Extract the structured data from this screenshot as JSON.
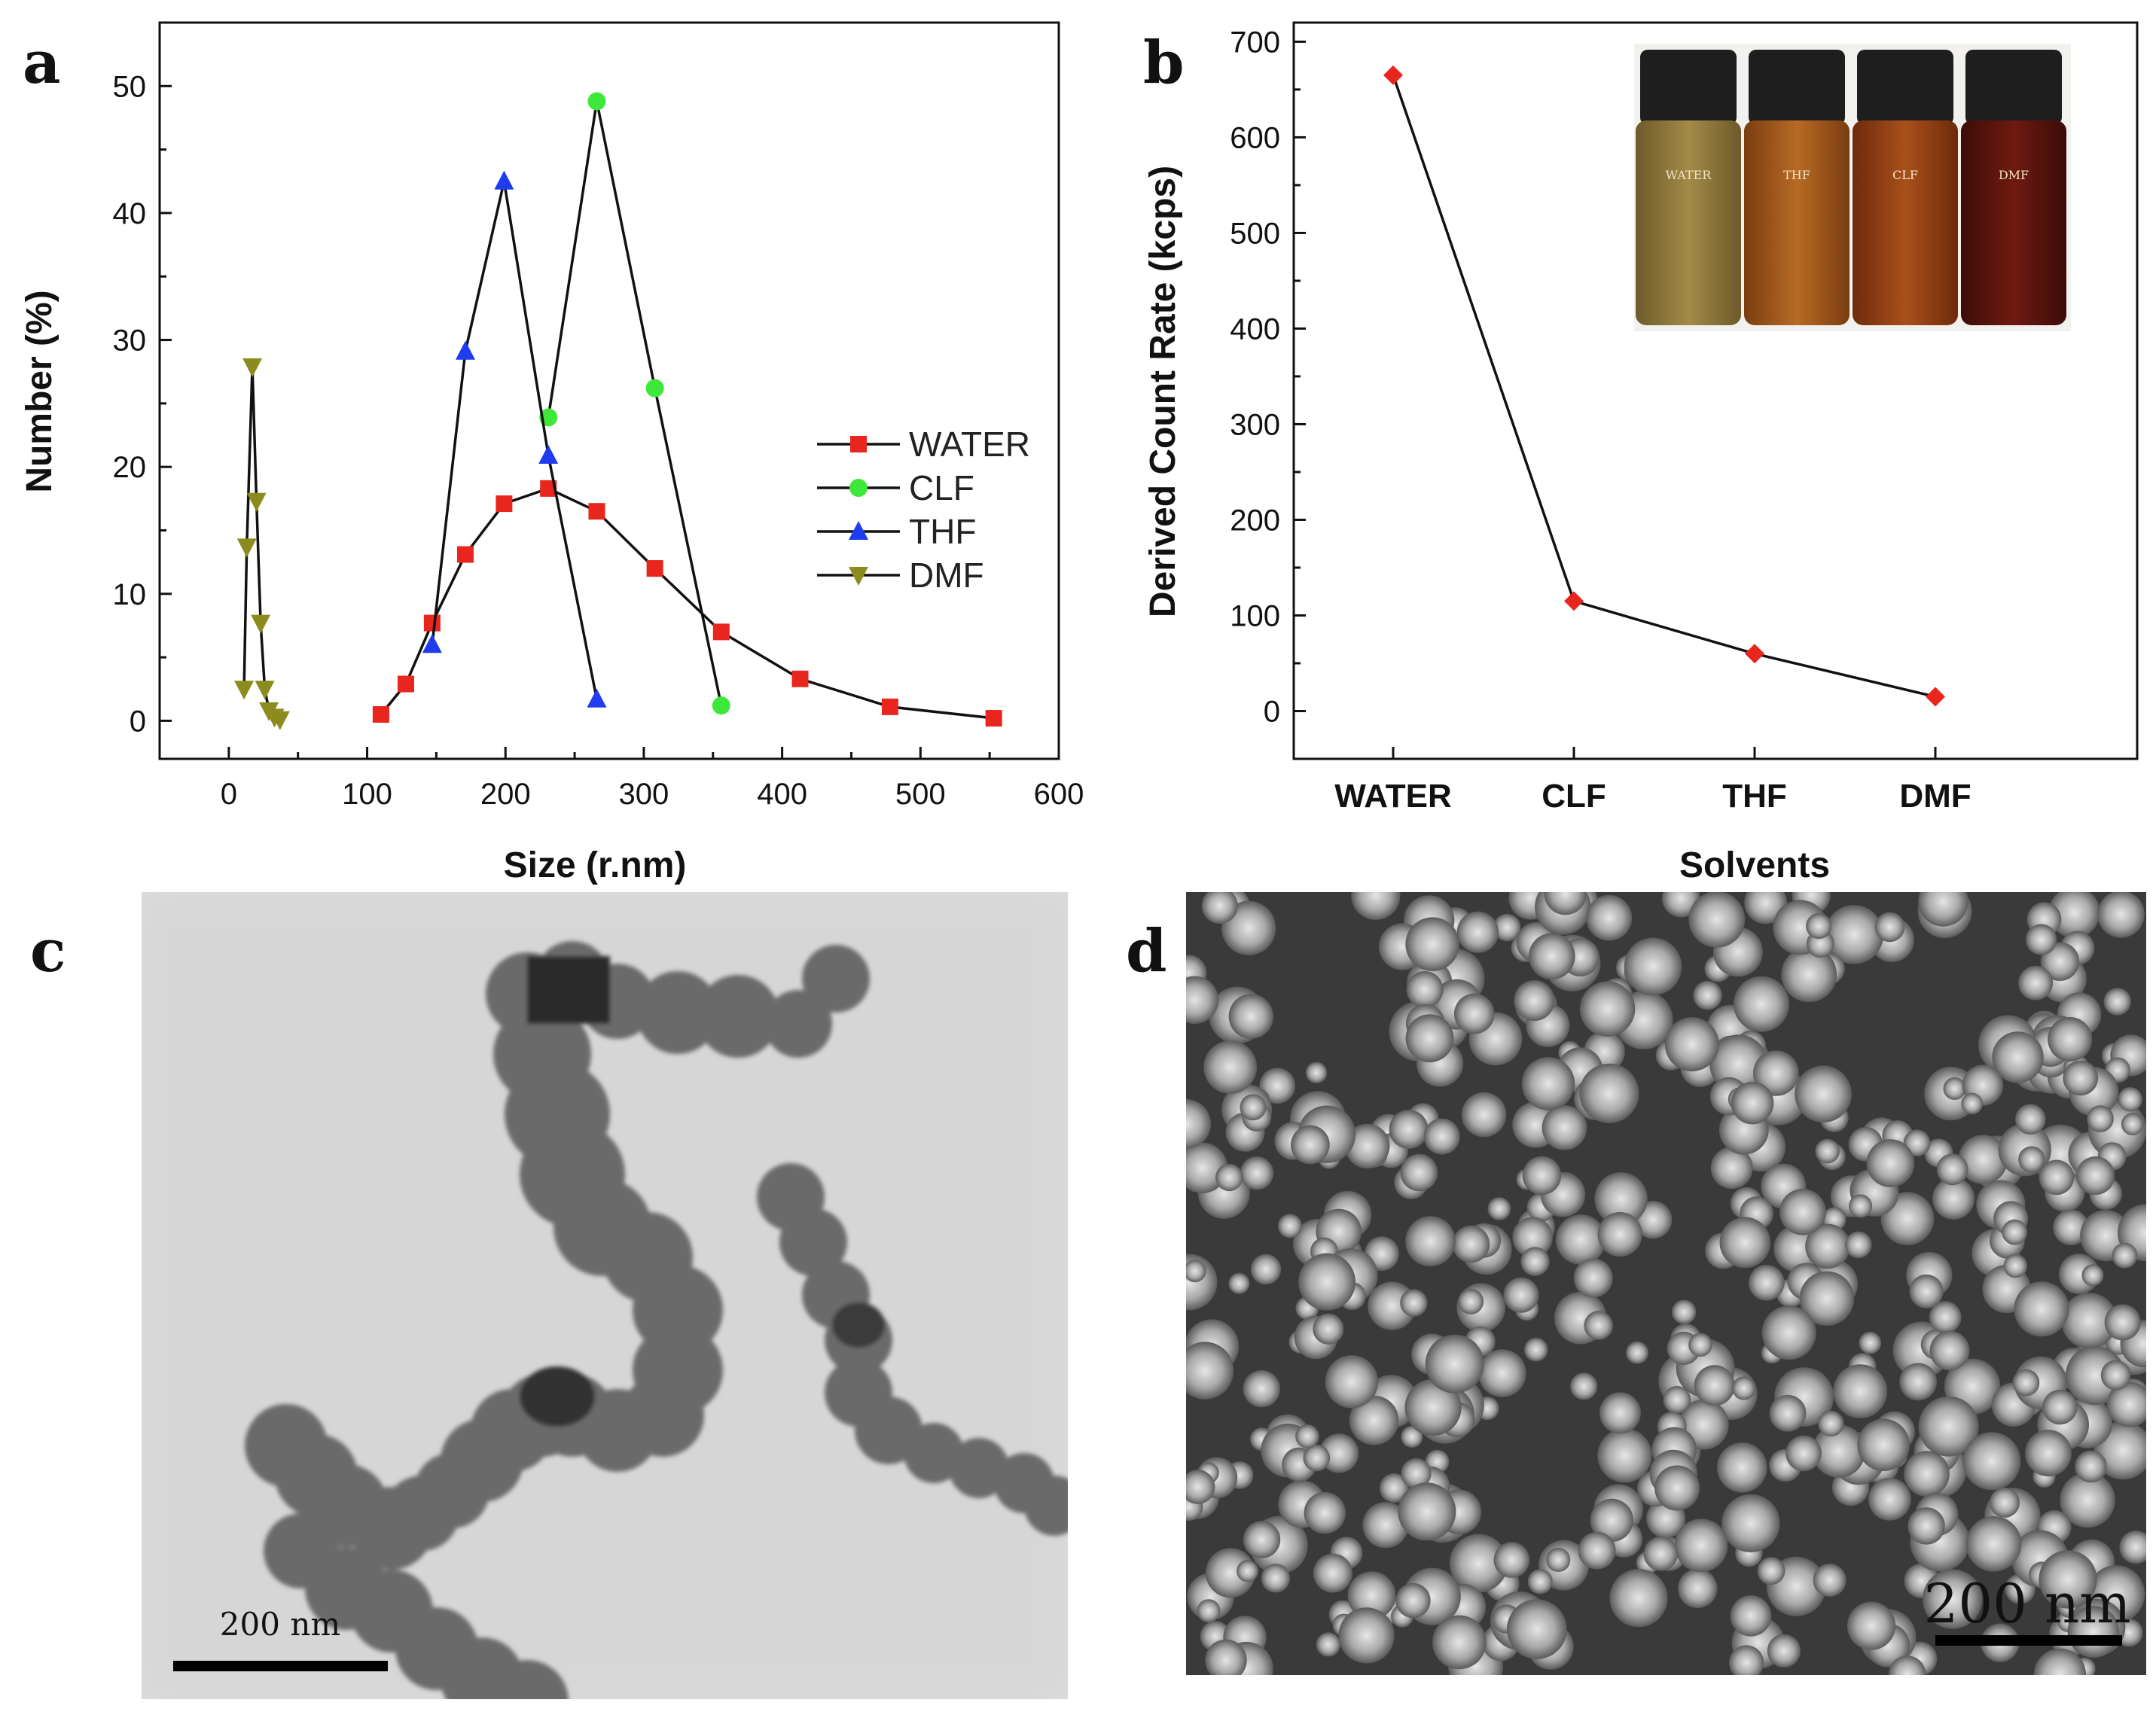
{
  "panels": {
    "a": {
      "letter": "a"
    },
    "b": {
      "letter": "b"
    },
    "c": {
      "letter": "c",
      "scale_bar": "200 nm"
    },
    "d": {
      "letter": "d",
      "scale_bar": "200 nm"
    }
  },
  "inset_vials": [
    "WATER",
    "THF",
    "CLF",
    "DMF"
  ],
  "colors": {
    "water": "#e8261e",
    "clf": "#3ee83a",
    "thf": "#1e3cf0",
    "dmf": "#8c8c1e",
    "line": "#111111",
    "b_marker": "#e8261e"
  },
  "chart_data": [
    {
      "type": "line",
      "panel": "a",
      "xlabel": "Size (r.nm)",
      "ylabel": "Number (%)",
      "xlim": [
        -50,
        600
      ],
      "ylim": [
        -3,
        55
      ],
      "x_ticks": [
        "0",
        "100",
        "200",
        "300",
        "400",
        "500",
        "600"
      ],
      "y_ticks": [
        "0",
        "10",
        "20",
        "30",
        "40",
        "50"
      ],
      "legend_position": "center-right",
      "series": [
        {
          "name": "WATER",
          "marker": "square",
          "x": [
            110,
            128,
            147,
            171,
            199,
            231,
            266,
            308,
            356,
            413,
            478,
            553
          ],
          "y": [
            0.5,
            2.9,
            7.7,
            13.1,
            17.1,
            18.3,
            16.5,
            12.0,
            7.0,
            3.3,
            1.1,
            0.2
          ]
        },
        {
          "name": "CLF",
          "marker": "circle",
          "x": [
            231,
            266,
            308,
            356
          ],
          "y": [
            23.9,
            48.8,
            26.2,
            1.2
          ]
        },
        {
          "name": "THF",
          "marker": "triangle-up",
          "x": [
            147,
            171,
            199,
            231,
            266
          ],
          "y": [
            6.0,
            29.1,
            42.5,
            20.9,
            1.7
          ]
        },
        {
          "name": "DMF",
          "marker": "triangle-down",
          "x": [
            11,
            13,
            17,
            20,
            23,
            26,
            29,
            33,
            37
          ],
          "y": [
            2.5,
            13.7,
            27.9,
            17.3,
            7.7,
            2.5,
            0.8,
            0.3,
            0.1
          ]
        }
      ]
    },
    {
      "type": "line",
      "panel": "b",
      "xlabel": "Solvents",
      "ylabel": "Derived Count Rate (kcps)",
      "ylim": [
        -50,
        720
      ],
      "y_ticks": [
        "0",
        "100",
        "200",
        "300",
        "400",
        "500",
        "600",
        "700"
      ],
      "categories": [
        "WATER",
        "CLF",
        "THF",
        "DMF"
      ],
      "values": [
        665,
        115,
        60,
        15
      ],
      "marker": "diamond"
    }
  ]
}
